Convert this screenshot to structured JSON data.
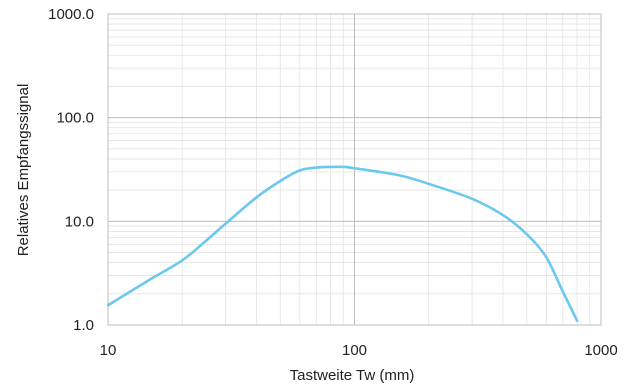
{
  "chart_data": {
    "type": "line",
    "xlabel": "Tastweite Tw (mm)",
    "ylabel": "Relatives Empfangssignal",
    "x_scale": "log",
    "y_scale": "log",
    "xlim": [
      10,
      1000
    ],
    "ylim": [
      1.0,
      1000.0
    ],
    "x_ticks": [
      {
        "value": 10,
        "label": "10"
      },
      {
        "value": 100,
        "label": "100"
      },
      {
        "value": 1000,
        "label": "1000"
      }
    ],
    "y_ticks": [
      {
        "value": 1,
        "label": "1.0"
      },
      {
        "value": 10,
        "label": "10.0"
      },
      {
        "value": 100,
        "label": "100.0"
      },
      {
        "value": 1000,
        "label": "1000.0"
      }
    ],
    "grid": true,
    "series": [
      {
        "color": "#6cc8ee",
        "x": [
          10,
          15,
          20,
          25,
          30,
          40,
          50,
          60,
          70,
          80,
          90,
          100,
          150,
          200,
          300,
          400,
          500,
          600,
          700,
          800
        ],
        "y": [
          1.55,
          2.8,
          4.2,
          6.5,
          9.5,
          17,
          24.5,
          31,
          33,
          33.5,
          33.5,
          32.5,
          28,
          23,
          16.5,
          11.5,
          7.5,
          4.5,
          2.1,
          1.1
        ]
      }
    ],
    "colors": {
      "grid": "#e2e2e2",
      "axis": "#bdbdbd",
      "text": "#222222"
    }
  }
}
